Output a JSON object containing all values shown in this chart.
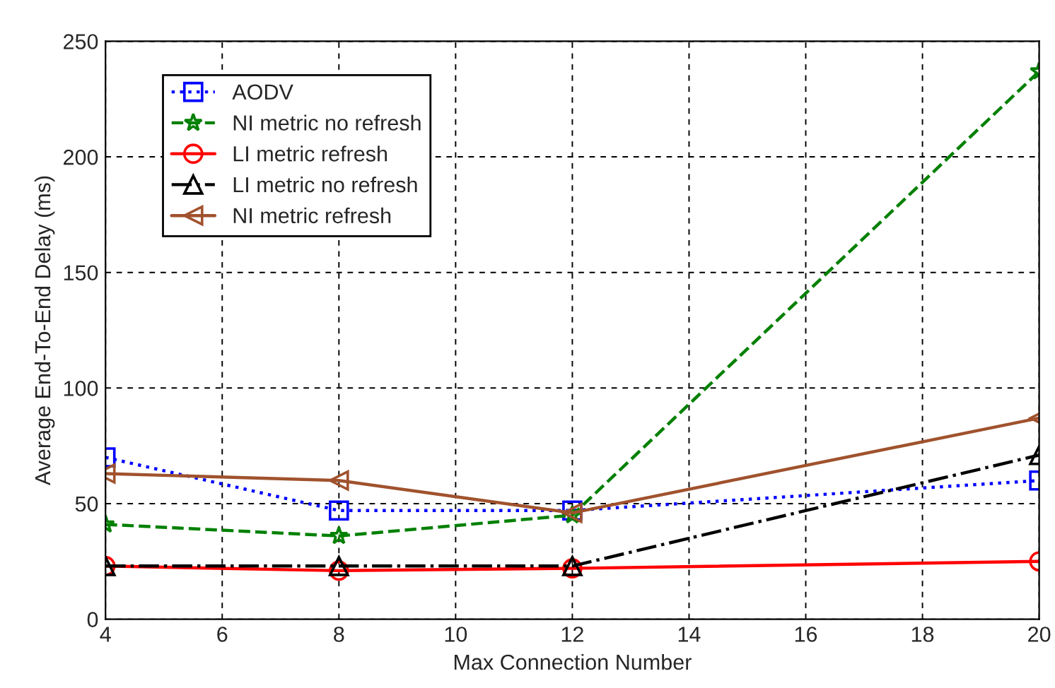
{
  "chart_data": {
    "type": "line",
    "xlabel": "Max Connection Number",
    "ylabel": "Average End-To-End Delay (ms)",
    "x": [
      4,
      8,
      12,
      20
    ],
    "series": [
      {
        "name": "AODV",
        "color": "#0000ff",
        "marker": "square",
        "line_style": "dotted",
        "values": [
          70,
          47,
          47,
          60
        ]
      },
      {
        "name": "NI metric no refresh",
        "color": "#008000",
        "marker": "star",
        "line_style": "dashed",
        "values": [
          41,
          36,
          45,
          237
        ]
      },
      {
        "name": "LI metric refresh",
        "color": "#ff0000",
        "marker": "circle",
        "line_style": "solid",
        "values": [
          23,
          21,
          22,
          25
        ]
      },
      {
        "name": "LI metric no refresh",
        "color": "#000000",
        "marker": "triangle",
        "line_style": "dashdot",
        "values": [
          23,
          23,
          23,
          71
        ]
      },
      {
        "name": "NI metric refresh",
        "color": "#a0522d",
        "marker": "triangle_left",
        "line_style": "solid",
        "values": [
          63,
          60,
          46,
          87
        ]
      }
    ],
    "xlim": [
      4,
      20
    ],
    "xticks": [
      4,
      6,
      8,
      10,
      12,
      14,
      16,
      18,
      20
    ],
    "ylim": [
      0,
      250
    ],
    "yticks": [
      0,
      50,
      100,
      150,
      200,
      250
    ],
    "grid": true,
    "legend": "top left"
  }
}
